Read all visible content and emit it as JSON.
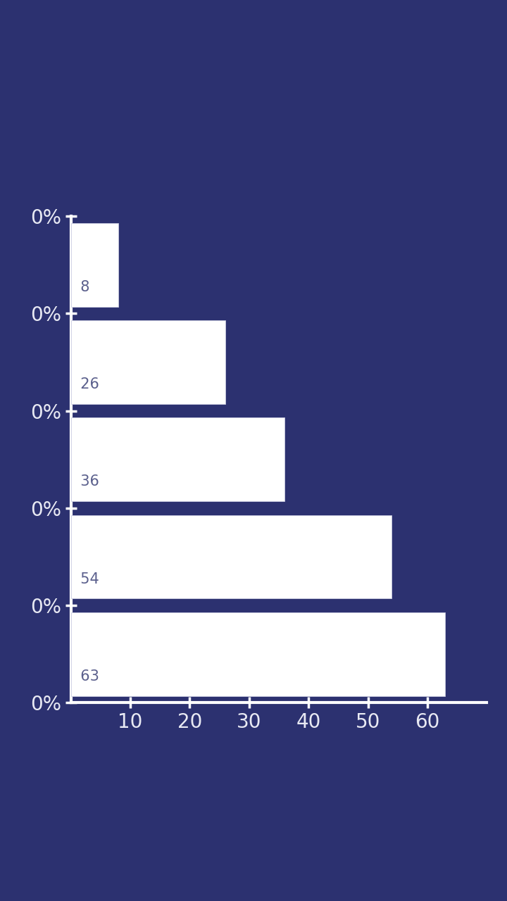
{
  "chart_data": {
    "type": "bar",
    "orientation": "horizontal",
    "categories": [
      null,
      null,
      null,
      null,
      null
    ],
    "values": [
      8,
      26,
      36,
      54,
      63
    ],
    "data_labels": true,
    "color": "#ffffff",
    "xlim": [
      0,
      70
    ],
    "xticks": [
      10,
      20,
      30,
      40,
      50,
      60
    ],
    "y_labels": [
      "0%",
      "0%",
      "0%",
      "0%",
      "0%",
      "0%"
    ],
    "grid": false
  }
}
